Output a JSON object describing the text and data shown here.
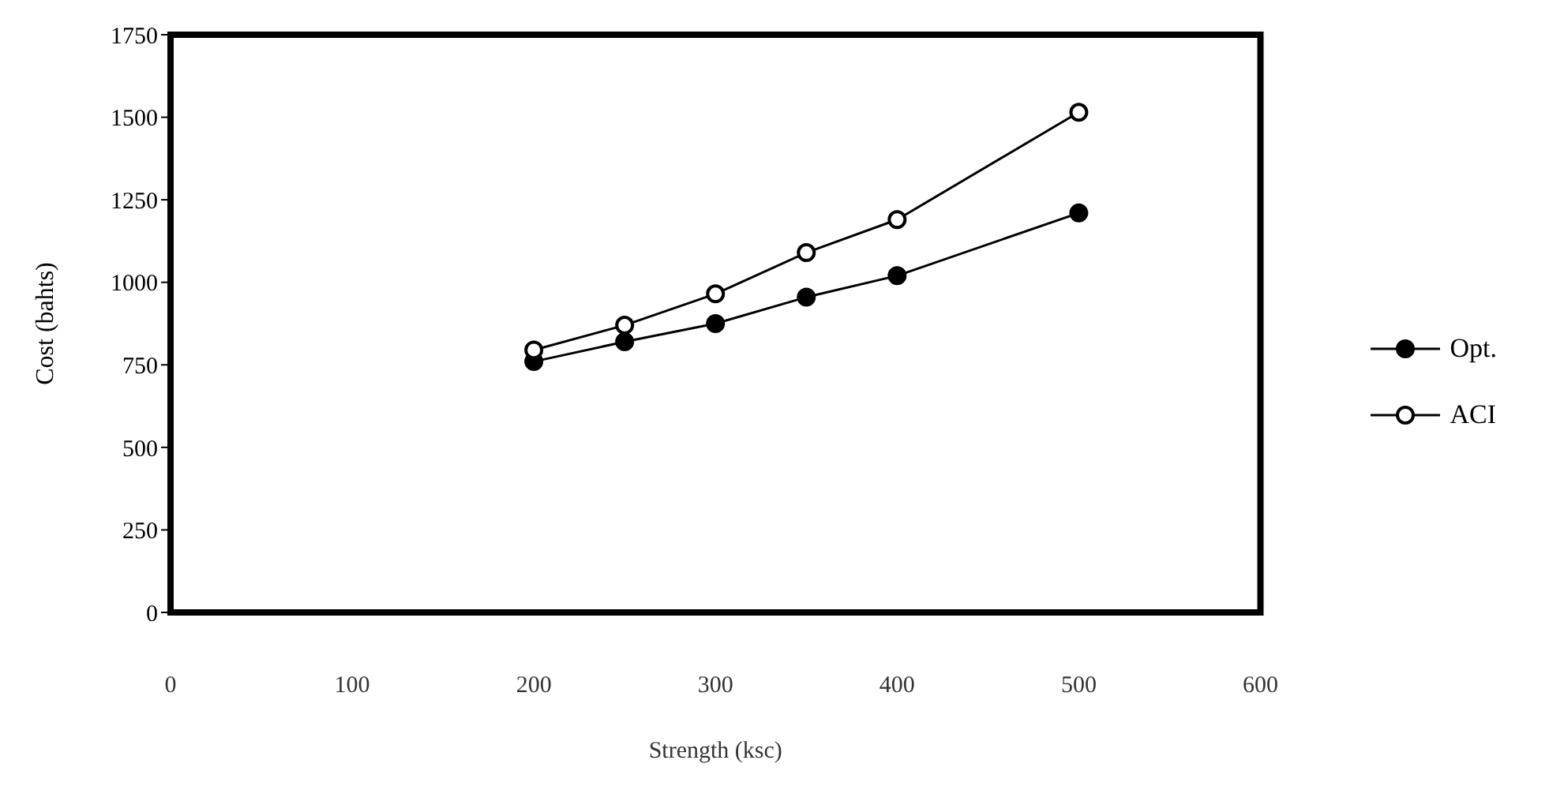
{
  "chart_data": {
    "type": "line",
    "xlabel": "Strength (ksc)",
    "ylabel": "Cost (bahts)",
    "xlim": [
      0,
      600
    ],
    "xticks": [
      0,
      100,
      200,
      300,
      400,
      500,
      600
    ],
    "ylim": [
      0,
      1750
    ],
    "yticks": [
      0,
      250,
      500,
      750,
      1000,
      1250,
      1500,
      1750
    ],
    "grid": false,
    "legend": "right",
    "marker": "circle",
    "line_style": "solid",
    "x": [
      200,
      250,
      300,
      350,
      400,
      500
    ],
    "series": [
      {
        "name": "Opt.",
        "color": "#000000",
        "values": [
          760,
          820,
          875,
          955,
          1020,
          1210
        ]
      },
      {
        "name": "ACI",
        "color": "#000000",
        "values": [
          795,
          870,
          965,
          1090,
          1190,
          1515
        ]
      }
    ]
  }
}
